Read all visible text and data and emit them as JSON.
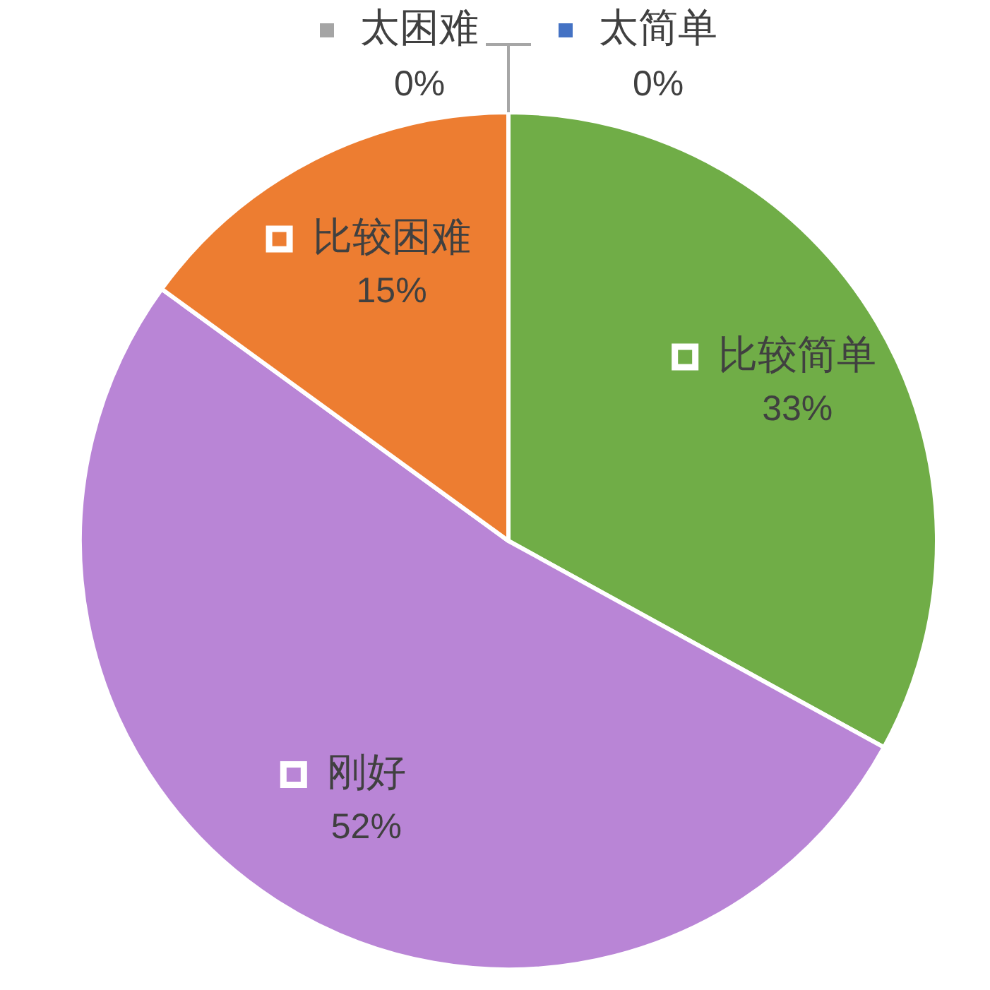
{
  "chart_data": {
    "type": "pie",
    "categories": [
      "太简单",
      "比较简单",
      "刚好",
      "比较困难",
      "太困难"
    ],
    "values": [
      0,
      33,
      52,
      15,
      0
    ],
    "colors": [
      "#4472c4",
      "#70ad47",
      "#b985d6",
      "#ed7d31",
      "#a5a5a5"
    ],
    "value_labels": [
      "0%",
      "33%",
      "52%",
      "15%",
      "0%"
    ],
    "legend": "top"
  }
}
